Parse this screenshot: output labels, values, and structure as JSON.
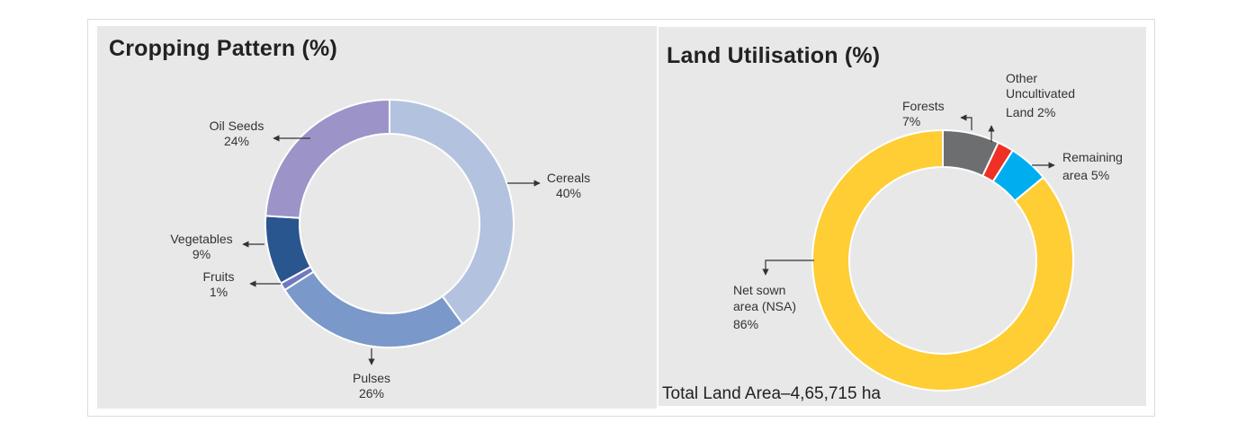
{
  "chart_data": [
    {
      "type": "pie",
      "title": "Cropping Pattern (%)",
      "hole": true,
      "slices": [
        {
          "label": "Cereals",
          "value": 40,
          "value_text": "40%",
          "color": "#b3c3df"
        },
        {
          "label": "Pulses",
          "value": 26,
          "value_text": "26%",
          "color": "#7a98c9"
        },
        {
          "label": "Fruits",
          "value": 1,
          "value_text": "1%",
          "color": "#6f79bf"
        },
        {
          "label": "Vegetables",
          "value": 9,
          "value_text": "9%",
          "color": "#2a5690"
        },
        {
          "label": "Oil Seeds",
          "value": 24,
          "value_text": "24%",
          "color": "#9c94c8"
        }
      ]
    },
    {
      "type": "pie",
      "title": "Land Utilisation (%)",
      "hole": true,
      "slices": [
        {
          "label": "Forests",
          "value": 7,
          "value_text": "7%",
          "color": "#6d6e70"
        },
        {
          "label": "Other Uncultivated Land",
          "value": 2,
          "value_text": "2%",
          "color": "#ee3124"
        },
        {
          "label": "Remaining area",
          "value": 5,
          "value_text": "5%",
          "color": "#00aeef"
        },
        {
          "label": "Net sown area (NSA)",
          "value": 86,
          "value_text": "86%",
          "color": "#ffcd34"
        }
      ],
      "footnote": "Total Land Area–4,65,715 ha"
    }
  ]
}
